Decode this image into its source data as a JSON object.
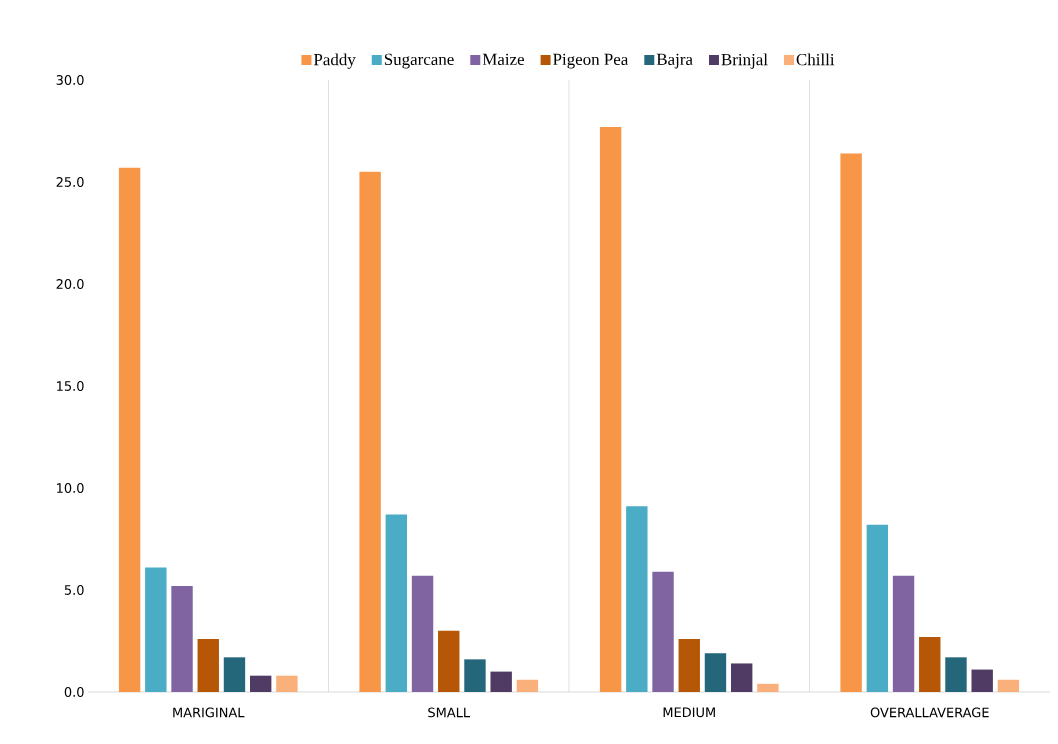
{
  "chart_data": {
    "type": "bar",
    "categories": [
      "MARIGINAL",
      "SMALL",
      "MEDIUM",
      "OVERALLAVERAGE"
    ],
    "series": [
      {
        "name": "Paddy",
        "color": "#f79646",
        "values": [
          25.7,
          25.5,
          27.7,
          26.4
        ]
      },
      {
        "name": "Sugarcane",
        "color": "#4bacc6",
        "values": [
          6.1,
          8.7,
          9.1,
          8.2
        ]
      },
      {
        "name": "Maize",
        "color": "#8064a2",
        "values": [
          5.2,
          5.7,
          5.9,
          5.7
        ]
      },
      {
        "name": "Pigeon Pea",
        "color": "#b65708",
        "values": [
          2.6,
          3.0,
          2.6,
          2.7
        ]
      },
      {
        "name": "Bajra",
        "color": "#25677a",
        "values": [
          1.7,
          1.6,
          1.9,
          1.7
        ]
      },
      {
        "name": "Brinjal",
        "color": "#4f3b63",
        "values": [
          0.8,
          1.0,
          1.4,
          1.1
        ]
      },
      {
        "name": "Chilli",
        "color": "#fab07a",
        "values": [
          0.8,
          0.6,
          0.4,
          0.6
        ]
      }
    ],
    "ylim": [
      0,
      30
    ],
    "yticks": [
      {
        "value": 0,
        "label": "0.0"
      },
      {
        "value": 5,
        "label": "5.0"
      },
      {
        "value": 10,
        "label": "10.0"
      },
      {
        "value": 15,
        "label": "15.0"
      },
      {
        "value": 20,
        "label": "20.0"
      },
      {
        "value": 25,
        "label": "25.0"
      },
      {
        "value": 30,
        "label": "30.0"
      }
    ],
    "grid": "x",
    "legend": "top"
  }
}
